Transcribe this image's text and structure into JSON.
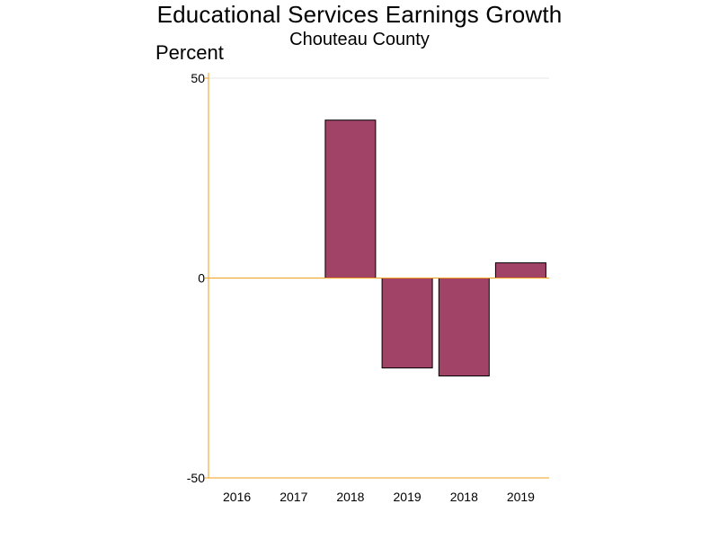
{
  "chart_data": {
    "type": "bar",
    "title": "Educational Services Earnings Growth",
    "subtitle": "Chouteau County",
    "ylabel": "Percent",
    "xlabel": "",
    "categories": [
      "2016",
      "2017",
      "2018",
      "2019",
      "2018",
      "2019"
    ],
    "values": [
      0,
      0,
      39.5,
      -22.5,
      -24.5,
      3.8
    ],
    "ylim": [
      -50,
      50
    ],
    "yticks": [
      "50",
      "0",
      "-50"
    ],
    "grid": "top reference line only",
    "colors": {
      "bar_fill": "#a04366",
      "bar_stroke": "#000000",
      "axis": "#f0a01e",
      "gridline": "#e6e6e6"
    }
  }
}
